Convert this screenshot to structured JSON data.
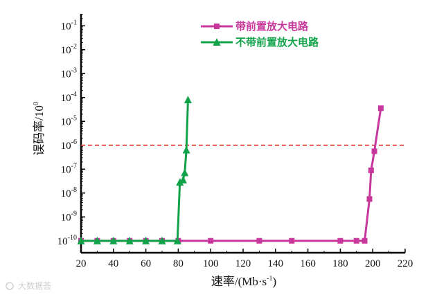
{
  "chart_data": {
    "type": "line",
    "xlabel": "速率/(Mb·s",
    "xlabel_sup": "-1",
    "xlabel_close": ")",
    "ylabel": "误码率/10",
    "ylabel_sup": "0",
    "x_scale": "linear",
    "y_scale": "log",
    "xlim": [
      20,
      220
    ],
    "ylim_exp": [
      -10.5,
      -0.5
    ],
    "x_ticks": [
      20,
      40,
      60,
      80,
      100,
      120,
      140,
      160,
      180,
      200,
      220
    ],
    "y_tick_base": "10",
    "y_tick_exps": [
      "-1",
      "-2",
      "-3",
      "-4",
      "-5",
      "-6",
      "-7",
      "-8",
      "-9",
      "-10"
    ],
    "threshold_exp": -6,
    "legend_position": "top-center",
    "grid": false,
    "series": [
      {
        "name": "带前置放大电路",
        "color": "#c8379b",
        "marker": "square",
        "points": [
          [
            20,
            -10
          ],
          [
            30,
            -10
          ],
          [
            40,
            -10
          ],
          [
            50,
            -10
          ],
          [
            60,
            -10
          ],
          [
            70,
            -10
          ],
          [
            80,
            -10
          ],
          [
            100,
            -10
          ],
          [
            130,
            -10
          ],
          [
            150,
            -10
          ],
          [
            180,
            -10
          ],
          [
            190,
            -10
          ],
          [
            195,
            -10
          ],
          [
            198,
            -8.25
          ],
          [
            199,
            -7.05
          ],
          [
            201,
            -6.25
          ],
          [
            205,
            -4.45
          ]
        ]
      },
      {
        "name": "不带前置放大电路",
        "color": "#12a34a",
        "marker": "triangle",
        "points": [
          [
            20,
            -10
          ],
          [
            30,
            -10
          ],
          [
            40,
            -10
          ],
          [
            50,
            -10
          ],
          [
            60,
            -10
          ],
          [
            70,
            -10
          ],
          [
            79.5,
            -10
          ],
          [
            81,
            -7.55
          ],
          [
            83,
            -7.45
          ],
          [
            84,
            -7.15
          ],
          [
            85,
            -6.2
          ],
          [
            86,
            -4.1
          ]
        ]
      }
    ]
  },
  "watermark": {
    "text": "大数据荟"
  }
}
